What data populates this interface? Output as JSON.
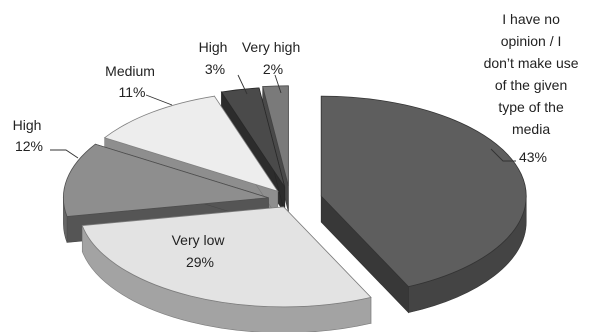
{
  "chart_data": {
    "type": "pie",
    "style": "3d-exploded",
    "title": "",
    "legend": "none",
    "slices": [
      {
        "label": "I have no opinion / I don't make use of the given type of the media",
        "label_lines": [
          "I have no",
          "opinion / I",
          "don’t make use",
          "of the given",
          "type of the",
          "media"
        ],
        "value": 43,
        "value_label": "43%",
        "color": "#5e5e5e"
      },
      {
        "label": "Very low",
        "label_lines": [
          "Very low"
        ],
        "value": 29,
        "value_label": "29%",
        "color": "#e3e3e3"
      },
      {
        "label": "High",
        "label_lines": [
          "High"
        ],
        "value": 12,
        "value_label": "12%",
        "color": "#8e8e8e"
      },
      {
        "label": "Medium",
        "label_lines": [
          "Medium"
        ],
        "value": 11,
        "value_label": "11%",
        "color": "#ededed"
      },
      {
        "label": "High",
        "label_lines": [
          "High"
        ],
        "value": 3,
        "value_label": "3%",
        "color": "#4a4a4a"
      },
      {
        "label": "Very high",
        "label_lines": [
          "Very high"
        ],
        "value": 2,
        "value_label": "2%",
        "color": "#7a7a7a"
      }
    ]
  }
}
